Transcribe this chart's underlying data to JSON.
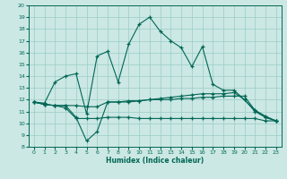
{
  "xlabel": "Humidex (Indice chaleur)",
  "bg_color": "#cce8e4",
  "grid_color": "#99ccc6",
  "line_color": "#006655",
  "xlim": [
    -0.5,
    23.5
  ],
  "ylim": [
    8,
    20
  ],
  "xticks": [
    0,
    1,
    2,
    3,
    4,
    5,
    6,
    7,
    8,
    9,
    10,
    11,
    12,
    13,
    14,
    15,
    16,
    17,
    18,
    19,
    20,
    21,
    22,
    23
  ],
  "yticks": [
    8,
    9,
    10,
    11,
    12,
    13,
    14,
    15,
    16,
    17,
    18,
    19,
    20
  ],
  "line1_x": [
    0,
    1,
    2,
    3,
    4,
    5,
    6,
    7,
    8,
    9,
    10,
    11,
    12,
    13,
    14,
    15,
    16,
    17,
    18,
    19,
    20,
    21,
    22,
    23
  ],
  "line1_y": [
    11.8,
    11.7,
    13.5,
    14.0,
    14.2,
    10.8,
    15.7,
    16.1,
    13.5,
    16.7,
    18.4,
    19.0,
    17.8,
    17.0,
    16.4,
    14.8,
    16.5,
    13.3,
    12.8,
    12.8,
    12.0,
    11.1,
    10.6,
    10.2
  ],
  "line2_x": [
    0,
    1,
    2,
    3,
    4,
    5,
    6,
    7,
    8,
    9,
    10,
    11,
    12,
    13,
    14,
    15,
    16,
    17,
    18,
    19,
    20,
    21,
    22,
    23
  ],
  "line2_y": [
    11.8,
    11.6,
    11.5,
    11.5,
    10.5,
    8.5,
    9.3,
    11.8,
    11.8,
    11.8,
    11.9,
    12.0,
    12.1,
    12.2,
    12.3,
    12.4,
    12.5,
    12.5,
    12.5,
    12.6,
    12.0,
    11.0,
    10.5,
    10.2
  ],
  "line3_x": [
    0,
    1,
    2,
    3,
    4,
    5,
    6,
    7,
    8,
    9,
    10,
    11,
    12,
    13,
    14,
    15,
    16,
    17,
    18,
    19,
    20,
    21,
    22,
    23
  ],
  "line3_y": [
    11.8,
    11.6,
    11.5,
    11.5,
    11.5,
    11.4,
    11.4,
    11.8,
    11.8,
    11.9,
    11.9,
    12.0,
    12.0,
    12.0,
    12.1,
    12.1,
    12.2,
    12.2,
    12.3,
    12.3,
    12.3,
    11.1,
    10.5,
    10.2
  ],
  "line4_x": [
    0,
    1,
    2,
    3,
    4,
    5,
    6,
    7,
    8,
    9,
    10,
    11,
    12,
    13,
    14,
    15,
    16,
    17,
    18,
    19,
    20,
    21,
    22,
    23
  ],
  "line4_y": [
    11.8,
    11.6,
    11.5,
    11.3,
    10.4,
    10.4,
    10.4,
    10.5,
    10.5,
    10.5,
    10.4,
    10.4,
    10.4,
    10.4,
    10.4,
    10.4,
    10.4,
    10.4,
    10.4,
    10.4,
    10.4,
    10.4,
    10.2,
    10.2
  ]
}
